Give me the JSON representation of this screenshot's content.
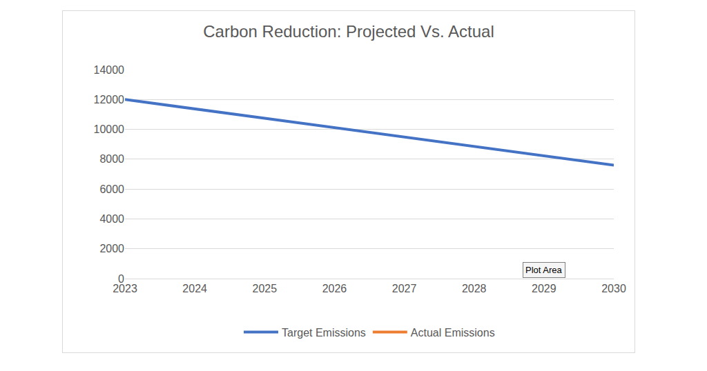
{
  "chart_data": {
    "type": "line",
    "title": "Carbon Reduction: Projected Vs. Actual",
    "categories": [
      "2023",
      "2024",
      "2025",
      "2026",
      "2027",
      "2028",
      "2029",
      "2030"
    ],
    "series": [
      {
        "name": "Target Emissions",
        "color": "#4472c4",
        "values": [
          12000,
          11370,
          10740,
          10110,
          9490,
          8860,
          8230,
          7600
        ]
      },
      {
        "name": "Actual Emissions",
        "color": "#ed7d31",
        "values": [
          null,
          null,
          null,
          null,
          null,
          null,
          null,
          null
        ]
      }
    ],
    "ylim": [
      0,
      14000
    ],
    "yticks": [
      0,
      2000,
      4000,
      6000,
      8000,
      10000,
      12000,
      14000
    ],
    "grid": true,
    "legend": "bottom",
    "annotations": [
      "Plot Area"
    ]
  }
}
